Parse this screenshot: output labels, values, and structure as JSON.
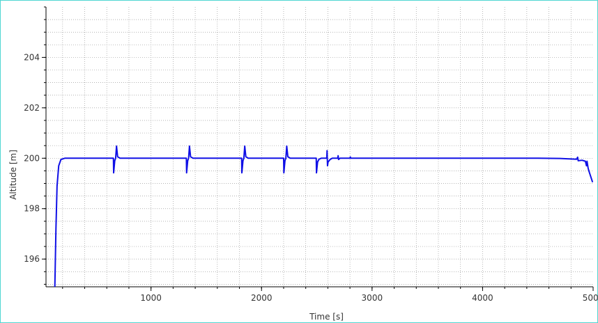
{
  "chart_data": {
    "type": "line",
    "title": "",
    "xlabel": "Time [s]",
    "ylabel": "Altitude [m]",
    "xlim": [
      50,
      5000
    ],
    "ylim": [
      194.9,
      206
    ],
    "grid": true,
    "legend": "none",
    "line_color": "#1010e6",
    "x_ticks": [
      1000,
      2000,
      3000,
      4000,
      5000
    ],
    "x_tick_labels": [
      "1000",
      "2000",
      "3000",
      "4000",
      "5000"
    ],
    "y_ticks": [
      196,
      198,
      200,
      202,
      204
    ],
    "y_tick_labels": [
      "196",
      "198",
      "200",
      "202",
      "204"
    ],
    "series": [
      {
        "values": [
          [
            130,
            194.9
          ],
          [
            140,
            197.2
          ],
          [
            150,
            198.9
          ],
          [
            165,
            199.7
          ],
          [
            185,
            199.95
          ],
          [
            220,
            200.0
          ],
          [
            660,
            200.0
          ],
          [
            662,
            199.42
          ],
          [
            672,
            199.9
          ],
          [
            680,
            200.0
          ],
          [
            688,
            200.48
          ],
          [
            698,
            200.06
          ],
          [
            720,
            200.0
          ],
          [
            1320,
            200.0
          ],
          [
            1322,
            199.42
          ],
          [
            1332,
            199.9
          ],
          [
            1340,
            200.0
          ],
          [
            1348,
            200.48
          ],
          [
            1358,
            200.06
          ],
          [
            1380,
            200.0
          ],
          [
            1820,
            200.0
          ],
          [
            1822,
            199.42
          ],
          [
            1832,
            199.9
          ],
          [
            1840,
            200.0
          ],
          [
            1848,
            200.48
          ],
          [
            1858,
            200.06
          ],
          [
            1880,
            200.0
          ],
          [
            2200,
            200.0
          ],
          [
            2202,
            199.42
          ],
          [
            2212,
            199.9
          ],
          [
            2220,
            200.0
          ],
          [
            2228,
            200.48
          ],
          [
            2238,
            200.06
          ],
          [
            2260,
            200.0
          ],
          [
            2495,
            200.0
          ],
          [
            2497,
            199.42
          ],
          [
            2507,
            199.85
          ],
          [
            2520,
            199.96
          ],
          [
            2540,
            200.0
          ],
          [
            2590,
            200.0
          ],
          [
            2593,
            200.3
          ],
          [
            2597,
            199.7
          ],
          [
            2602,
            199.85
          ],
          [
            2620,
            199.95
          ],
          [
            2640,
            200.0
          ],
          [
            2690,
            200.0
          ],
          [
            2693,
            200.1
          ],
          [
            2697,
            199.95
          ],
          [
            2710,
            200.0
          ],
          [
            2800,
            200.0
          ],
          [
            2803,
            200.05
          ],
          [
            2808,
            200.0
          ],
          [
            4300,
            200.0
          ],
          [
            4500,
            200.0
          ],
          [
            4700,
            199.99
          ],
          [
            4800,
            199.97
          ],
          [
            4850,
            199.96
          ],
          [
            4860,
            200.04
          ],
          [
            4865,
            199.9
          ],
          [
            4900,
            199.92
          ],
          [
            4930,
            199.88
          ],
          [
            4940,
            199.7
          ],
          [
            4945,
            199.88
          ],
          [
            4955,
            199.6
          ],
          [
            4965,
            199.45
          ],
          [
            4980,
            199.25
          ],
          [
            4995,
            199.05
          ]
        ]
      }
    ]
  }
}
